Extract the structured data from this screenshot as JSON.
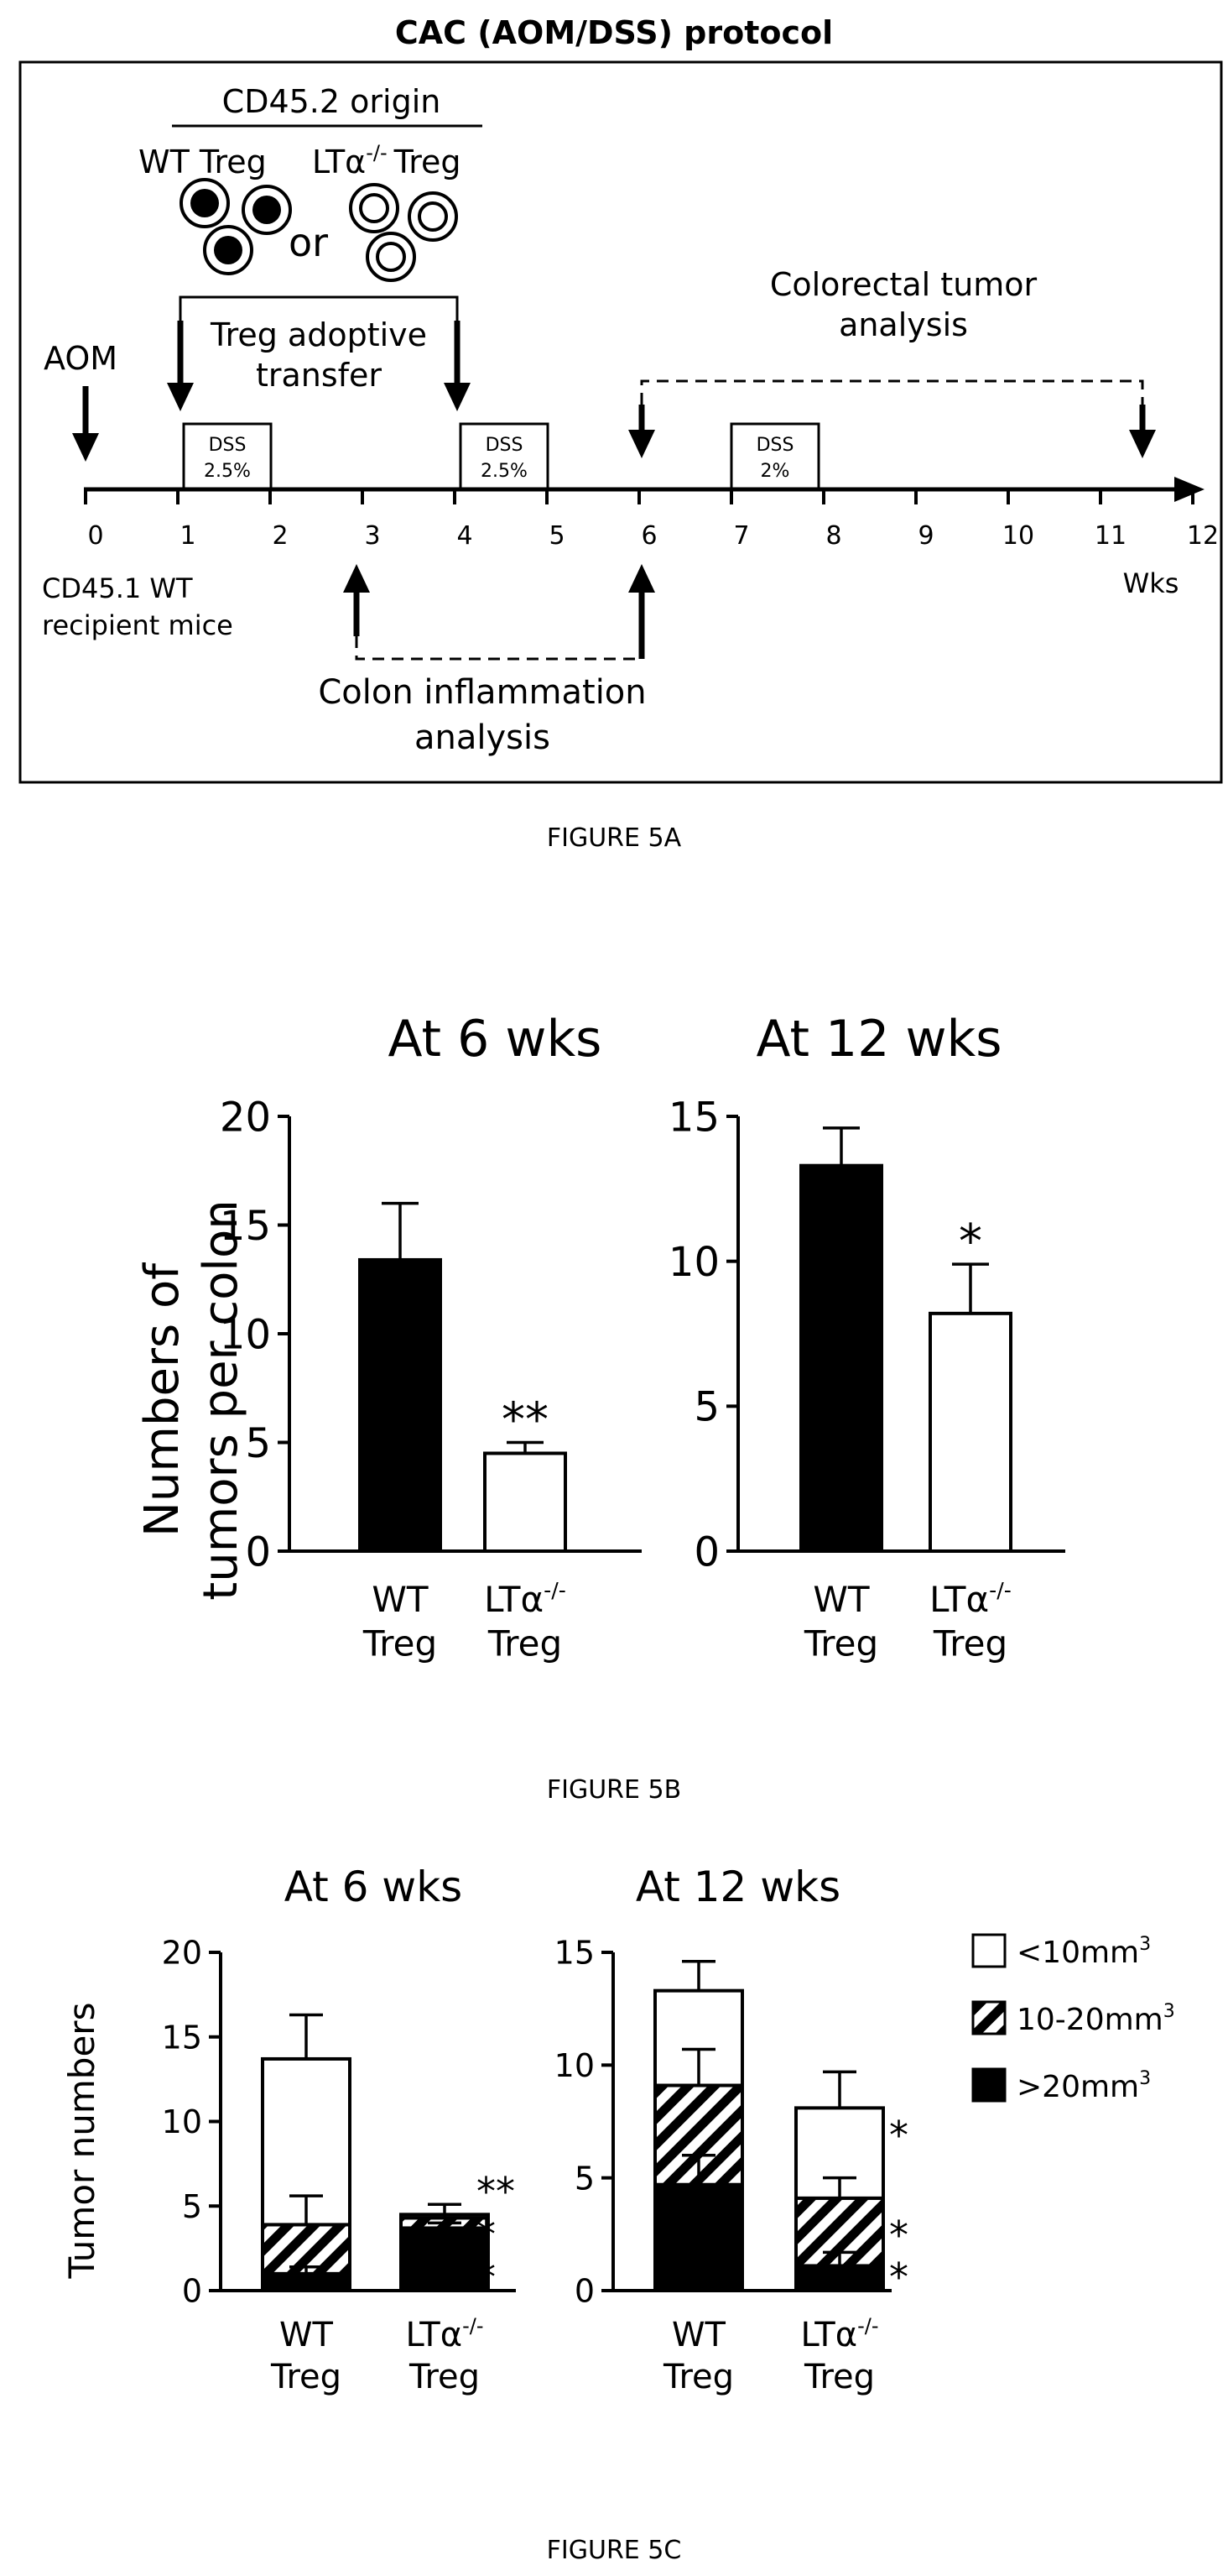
{
  "fig5a": {
    "title": "CAC (AOM/DSS) protocol",
    "origin_label": "CD45.2 origin",
    "wt_treg": "WT Treg",
    "lta_prefix": "LTα",
    "lta_sup": "-/-",
    "treg": "Treg",
    "or": "or",
    "aom": "AOM",
    "treg_transfer_l1": "Treg adoptive",
    "treg_transfer_l2": "transfer",
    "tumor_analysis_l1": "Colorectal tumor",
    "tumor_analysis_l2": "analysis",
    "dss": "DSS",
    "dss_1": "2.5%",
    "dss_2": "2.5%",
    "dss_3": "2%",
    "ticks": [
      "0",
      "1",
      "2",
      "3",
      "4",
      "5",
      "6",
      "7",
      "8",
      "9",
      "10",
      "11",
      "12"
    ],
    "wks": "Wks",
    "recipient_l1": "CD45.1 WT",
    "recipient_l2": "recipient mice",
    "inflammation_l1": "Colon inflammation",
    "inflammation_l2": "analysis",
    "caption": "FIGURE 5A"
  },
  "fig5b": {
    "ylabel_l1": "Numbers of",
    "ylabel_l2": "tumors per colon",
    "caption": "FIGURE 5B",
    "cat_wt_l1": "WT",
    "cat_l2": "Treg",
    "cat_lta": "LTα",
    "cat_lta_sup": "-/-"
  },
  "fig5c": {
    "ylabel": "Tumor numbers",
    "caption": "FIGURE 5C",
    "legend": [
      "<10mm",
      "10-20mm",
      ">20mm"
    ],
    "legend_sup": "3"
  },
  "chart_data": [
    {
      "type": "bar",
      "title": "At 6 wks",
      "ylabel": "Numbers of tumors per colon",
      "categories": [
        "WT Treg",
        "LTα-/- Treg"
      ],
      "values": [
        13.4,
        4.5
      ],
      "errors": [
        2.6,
        0.5
      ],
      "significance": [
        "",
        "**"
      ],
      "ylim": [
        0,
        20
      ],
      "yticks": [
        0,
        5,
        10,
        15,
        20
      ],
      "colors": [
        "#000000",
        "#ffffff"
      ]
    },
    {
      "type": "bar",
      "title": "At 12 wks",
      "categories": [
        "WT Treg",
        "LTα-/- Treg"
      ],
      "values": [
        13.3,
        8.2
      ],
      "errors": [
        1.3,
        1.7
      ],
      "significance": [
        "",
        "*"
      ],
      "ylim": [
        0,
        15
      ],
      "yticks": [
        0,
        5,
        10,
        15
      ],
      "colors": [
        "#000000",
        "#ffffff"
      ]
    },
    {
      "type": "bar",
      "stacked": true,
      "title": "At 6 wks",
      "ylabel": "Tumor numbers",
      "categories": [
        "WT Treg",
        "LTα-/- Treg"
      ],
      "series": [
        {
          "name": ">20mm3",
          "values": [
            1.0,
            3.7
          ],
          "cumulative_errors": [
            1.4,
            4.0
          ]
        },
        {
          "name": "10-20mm3",
          "values": [
            2.9,
            0.6
          ],
          "cumulative_errors": [
            5.6,
            4.5
          ]
        },
        {
          "name": "<10mm3",
          "values": [
            9.8,
            0.2
          ],
          "cumulative_errors": [
            16.3,
            5.1
          ]
        }
      ],
      "significance": [
        [
          "",
          "",
          ""
        ],
        [
          "*",
          "*",
          "**"
        ]
      ],
      "ylim": [
        0,
        20
      ],
      "yticks": [
        0,
        5,
        10,
        15,
        20
      ]
    },
    {
      "type": "bar",
      "stacked": true,
      "title": "At 12 wks",
      "categories": [
        "WT Treg",
        "LTα-/- Treg"
      ],
      "series": [
        {
          "name": ">20mm3",
          "values": [
            4.7,
            1.1
          ],
          "cumulative_errors": [
            6.0,
            1.7
          ]
        },
        {
          "name": "10-20mm3",
          "values": [
            4.4,
            3.0
          ],
          "cumulative_errors": [
            10.7,
            5.0
          ]
        },
        {
          "name": "<10mm3",
          "values": [
            4.2,
            4.0
          ],
          "cumulative_errors": [
            14.6,
            9.7
          ]
        }
      ],
      "significance": [
        [
          "",
          "",
          ""
        ],
        [
          "*",
          "*",
          "*"
        ]
      ],
      "ylim": [
        0,
        15
      ],
      "yticks": [
        0,
        5,
        10,
        15
      ],
      "legend_position": "right"
    }
  ]
}
